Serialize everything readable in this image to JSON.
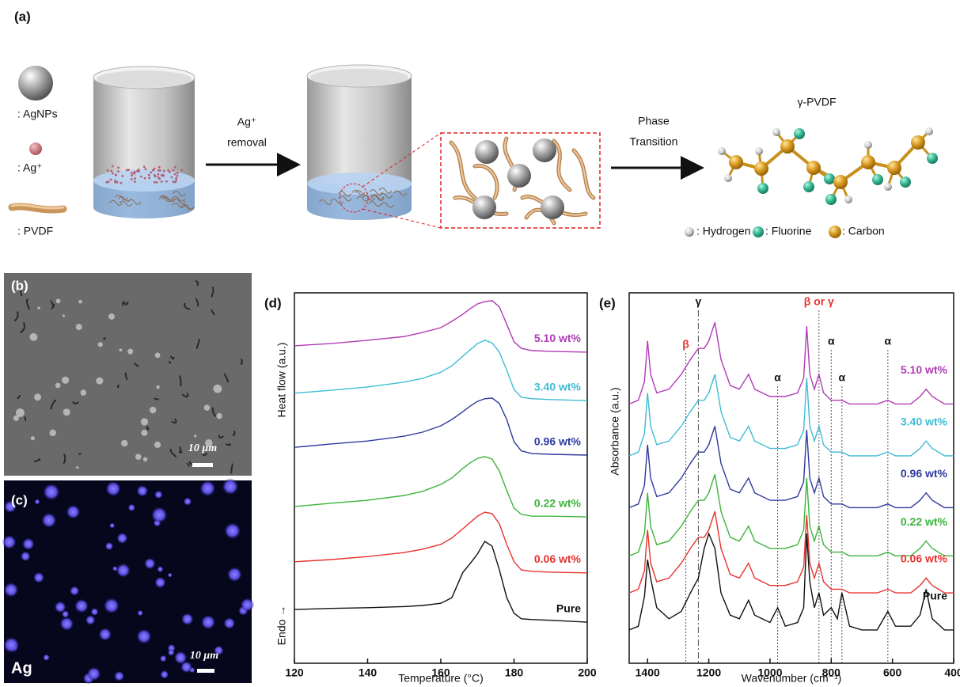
{
  "panel_a": {
    "label": "(a)",
    "legend": [
      ": AgNPs",
      ": Ag⁺",
      ": PVDF"
    ],
    "arrow_1": [
      "Ag⁺",
      "removal"
    ],
    "arrow_2": [
      "Phase",
      "Transition"
    ],
    "product": "γ-PVDF",
    "atoms": [
      ": Hydrogen",
      ": Fluorine",
      ": Carbon"
    ]
  },
  "panel_b": {
    "label": "(b)",
    "scale_bar": "10 μm"
  },
  "panel_c": {
    "label": "(c)",
    "scale_bar": "10 μm",
    "element": "Ag"
  },
  "chart_data": [
    {
      "type": "line",
      "title": "(d)",
      "xlabel": "Temperature (°C)",
      "ylabel": "Heat flow (a.u.)",
      "y_note": "Endo →",
      "x": [
        120,
        130,
        140,
        150,
        155,
        160,
        163,
        166,
        168,
        170,
        172,
        174,
        176,
        178,
        180,
        182,
        185,
        190,
        200
      ],
      "xlim": [
        120,
        200
      ],
      "xticks": [
        120,
        140,
        160,
        180,
        200
      ],
      "ylim": [
        0,
        100
      ],
      "series": [
        {
          "name": "5.10 wt%",
          "color": "#b13bb5",
          "values": [
            85.7,
            86.3,
            87.2,
            88.2,
            89.3,
            90.6,
            92.3,
            94.2,
            95.7,
            97.0,
            97.6,
            97.9,
            96.2,
            91.5,
            86.8,
            85.0,
            84.4,
            84.2,
            84.0
          ]
        },
        {
          "name": "3.40 wt%",
          "color": "#3fbcd4",
          "values": [
            72.9,
            73.7,
            74.6,
            75.9,
            76.9,
            78.6,
            80.3,
            82.9,
            84.6,
            86.3,
            87.2,
            86.5,
            84.0,
            79.1,
            73.9,
            71.8,
            71.4,
            71.2,
            70.9
          ]
        },
        {
          "name": "0.96 wt%",
          "color": "#2e3a9e",
          "values": [
            58.3,
            59.2,
            60.0,
            61.3,
            62.4,
            64.1,
            65.8,
            67.9,
            69.4,
            70.7,
            71.4,
            71.6,
            70.1,
            65.8,
            59.8,
            57.3,
            56.6,
            56.4,
            56.2
          ]
        },
        {
          "name": "0.22 wt%",
          "color": "#3cb43c",
          "values": [
            42.3,
            43.2,
            44.0,
            45.3,
            46.4,
            48.3,
            50.0,
            52.6,
            54.1,
            55.3,
            55.8,
            55.1,
            51.9,
            46.6,
            41.9,
            40.2,
            39.7,
            39.7,
            39.5
          ]
        },
        {
          "name": "0.06 wt%",
          "color": "#e8322d",
          "values": [
            27.4,
            28.0,
            28.8,
            29.9,
            30.8,
            32.1,
            33.8,
            36.3,
            38.0,
            39.7,
            40.8,
            40.4,
            37.6,
            32.1,
            27.4,
            25.2,
            24.8,
            24.6,
            24.4
          ]
        },
        {
          "name": "Pure",
          "color": "#111111",
          "values": [
            14.5,
            14.8,
            15.0,
            15.3,
            15.6,
            16.2,
            17.7,
            24.5,
            26.9,
            29.5,
            32.9,
            31.6,
            25.2,
            17.7,
            13.5,
            12.0,
            11.8,
            11.6,
            11.1
          ]
        }
      ]
    },
    {
      "type": "line",
      "title": "(e)",
      "xlabel": "Wavenumber (cm⁻¹)",
      "ylabel": "Absorbance (a.u.)",
      "x": [
        1460,
        1430,
        1410,
        1400,
        1390,
        1370,
        1330,
        1290,
        1260,
        1234,
        1215,
        1200,
        1180,
        1160,
        1130,
        1100,
        1070,
        1050,
        1000,
        975,
        950,
        910,
        890,
        880,
        870,
        855,
        840,
        825,
        800,
        780,
        765,
        740,
        700,
        650,
        615,
        590,
        540,
        510,
        490,
        470,
        430,
        400
      ],
      "xlim": [
        1460,
        400
      ],
      "xticks": [
        1400,
        1200,
        1000,
        800,
        600,
        400
      ],
      "ylim": [
        0,
        100
      ],
      "series": [
        {
          "name": "5.10 wt%",
          "color": "#b13bb5",
          "values": [
            70,
            71,
            76,
            87,
            78,
            73,
            74,
            78,
            82,
            85,
            85,
            87,
            92,
            82,
            75,
            74,
            78,
            74,
            72,
            72,
            72,
            73,
            77,
            91,
            78,
            74,
            78,
            73,
            71,
            71,
            71,
            70,
            70,
            70,
            71,
            70,
            70,
            72,
            74,
            72,
            70,
            70
          ]
        },
        {
          "name": "3.40 wt%",
          "color": "#3fbcd4",
          "values": [
            56,
            57,
            62,
            73,
            64,
            59,
            60,
            64,
            68,
            71,
            71,
            73,
            78,
            68,
            61,
            60,
            64,
            60,
            58,
            58,
            58,
            59,
            63,
            77,
            64,
            60,
            64,
            59,
            57,
            57,
            57,
            56,
            56,
            56,
            57,
            56,
            56,
            58,
            60,
            58,
            56,
            56
          ]
        },
        {
          "name": "0.96 wt%",
          "color": "#2e3a9e",
          "values": [
            42,
            43,
            48,
            59,
            50,
            45,
            46,
            50,
            54,
            57,
            57,
            59,
            64,
            54,
            47,
            46,
            50,
            46,
            44,
            44,
            44,
            45,
            49,
            63,
            50,
            46,
            50,
            45,
            43,
            43,
            43,
            42,
            42,
            42,
            43,
            42,
            42,
            44,
            46,
            44,
            42,
            42
          ]
        },
        {
          "name": "0.22 wt%",
          "color": "#3cb43c",
          "values": [
            29,
            30,
            35,
            46,
            37,
            32,
            33,
            37,
            41,
            44,
            44,
            46,
            51,
            41,
            34,
            33,
            37,
            33,
            31,
            31,
            31,
            32,
            36,
            50,
            37,
            33,
            37,
            32,
            30,
            30,
            30,
            29,
            29,
            29,
            30,
            29,
            29,
            31,
            33,
            31,
            29,
            29
          ]
        },
        {
          "name": "0.06 wt%",
          "color": "#e8322d",
          "values": [
            19,
            20,
            25,
            36,
            27,
            22,
            23,
            27,
            31,
            34,
            34,
            36,
            41,
            31,
            24,
            23,
            27,
            23,
            21,
            21,
            21,
            22,
            26,
            40,
            27,
            23,
            27,
            22,
            20,
            20,
            20,
            19,
            19,
            19,
            20,
            19,
            19,
            21,
            23,
            21,
            19,
            19
          ]
        },
        {
          "name": "Pure",
          "color": "#111111",
          "values": [
            9,
            10,
            18,
            28,
            23,
            15,
            12,
            14,
            19,
            23,
            31,
            35,
            31,
            19,
            13,
            12,
            17,
            13,
            11,
            15,
            10,
            11,
            15,
            35,
            22,
            15,
            19,
            13,
            15,
            12,
            19,
            10,
            9,
            9,
            14,
            10,
            10,
            13,
            20,
            12,
            9,
            9
          ]
        }
      ],
      "annotations": [
        {
          "label": "β",
          "x": 1275,
          "color": "#e8322d",
          "style": "dotted"
        },
        {
          "label": "γ",
          "x": 1234,
          "color": "#111111",
          "style": "dashdot"
        },
        {
          "label": "α",
          "x": 975,
          "color": "#111111",
          "style": "dotted"
        },
        {
          "label": "β or γ",
          "x": 840,
          "color": "#e8322d",
          "style": "dotted"
        },
        {
          "label": "α",
          "x": 800,
          "color": "#111111",
          "style": "dotted"
        },
        {
          "label": "α",
          "x": 765,
          "color": "#111111",
          "style": "dotted"
        },
        {
          "label": "α",
          "x": 615,
          "color": "#111111",
          "style": "dotted"
        }
      ]
    }
  ]
}
